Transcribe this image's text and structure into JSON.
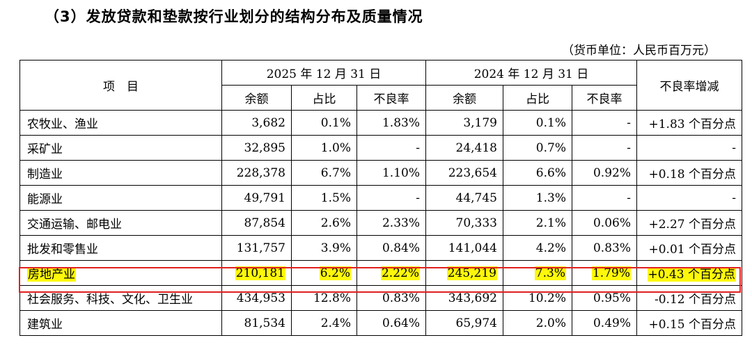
{
  "heading": "（3）发放贷款和垫款按行业划分的结构分布及质量情况",
  "unit": "（货币单位：人民币百万元）",
  "header": {
    "item": "项　目",
    "period1": "2025 年 12 月 31 日",
    "period2": "2024 年 12 月 31 日",
    "change": "不良率增减",
    "balance1": "余额",
    "share1": "占比",
    "npl1": "不良率",
    "balance2": "余额",
    "share2": "占比",
    "npl2": "不良率"
  },
  "rows": [
    {
      "name": "农牧业、渔业",
      "b1": "3,682",
      "s1": "0.1%",
      "n1": "1.83%",
      "b2": "3,179",
      "s2": "0.1%",
      "n2": "-",
      "chg": "+1.83 个百分点"
    },
    {
      "name": "采矿业",
      "b1": "32,895",
      "s1": "1.0%",
      "n1": "-",
      "b2": "24,418",
      "s2": "0.7%",
      "n2": "-",
      "chg": "-"
    },
    {
      "name": "制造业",
      "b1": "228,378",
      "s1": "6.7%",
      "n1": "1.10%",
      "b2": "223,654",
      "s2": "6.6%",
      "n2": "0.92%",
      "chg": "+0.18 个百分点"
    },
    {
      "name": "能源业",
      "b1": "49,791",
      "s1": "1.5%",
      "n1": "-",
      "b2": "44,745",
      "s2": "1.3%",
      "n2": "-",
      "chg": "-"
    },
    {
      "name": "交通运输、邮电业",
      "b1": "87,854",
      "s1": "2.6%",
      "n1": "2.33%",
      "b2": "70,333",
      "s2": "2.1%",
      "n2": "0.06%",
      "chg": "+2.27 个百分点"
    },
    {
      "name": "批发和零售业",
      "b1": "131,757",
      "s1": "3.9%",
      "n1": "0.84%",
      "b2": "141,044",
      "s2": "4.2%",
      "n2": "0.83%",
      "chg": "+0.01 个百分点"
    },
    {
      "name": "房地产业",
      "b1": "210,181",
      "s1": "6.2%",
      "n1": "2.22%",
      "b2": "245,219",
      "s2": "7.3%",
      "n2": "1.79%",
      "chg": "+0.43 个百分点"
    },
    {
      "name": "社会服务、科技、文化、卫生业",
      "b1": "434,953",
      "s1": "12.8%",
      "n1": "0.83%",
      "b2": "343,692",
      "s2": "10.2%",
      "n2": "0.95%",
      "chg": "-0.12 个百分点"
    },
    {
      "name": "建筑业",
      "b1": "81,534",
      "s1": "2.4%",
      "n1": "0.64%",
      "b2": "65,974",
      "s2": "2.0%",
      "n2": "0.49%",
      "chg": "+0.15 个百分点"
    }
  ],
  "highlight_color": "#fdf80b",
  "highlight_border": "#e11f1f"
}
